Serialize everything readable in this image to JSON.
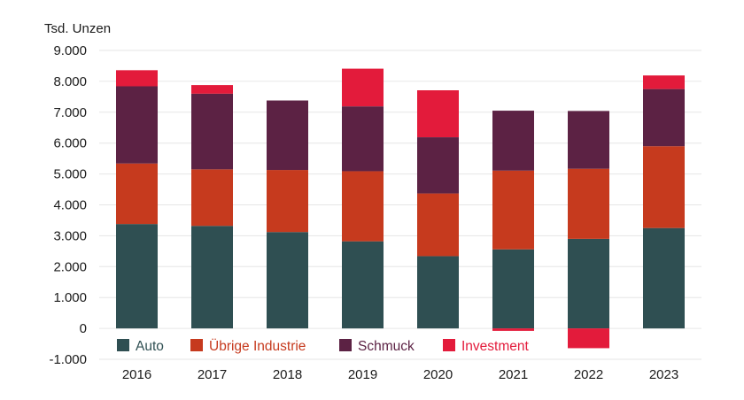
{
  "chart_data": {
    "type": "bar",
    "stacked": true,
    "y_unit_label": "Tsd. Unzen",
    "categories": [
      "2016",
      "2017",
      "2018",
      "2019",
      "2020",
      "2021",
      "2022",
      "2023"
    ],
    "ylim": [
      -1000,
      9000
    ],
    "y_ticks": [
      {
        "value": 9000,
        "label": "9.000"
      },
      {
        "value": 8000,
        "label": "8.000"
      },
      {
        "value": 7000,
        "label": "7.000"
      },
      {
        "value": 6000,
        "label": "6.000"
      },
      {
        "value": 5000,
        "label": "5.000"
      },
      {
        "value": 4000,
        "label": "4.000"
      },
      {
        "value": 3000,
        "label": "3.000"
      },
      {
        "value": 2000,
        "label": "2.000"
      },
      {
        "value": 1000,
        "label": "1.000"
      },
      {
        "value": 0,
        "label": "0"
      },
      {
        "value": -1000,
        "label": "-1.000"
      }
    ],
    "grid": true,
    "legend_position": "bottom-left",
    "series": [
      {
        "name": "Auto",
        "color": "#2f4f52",
        "values": [
          3380,
          3320,
          3120,
          2820,
          2340,
          2560,
          2900,
          3250
        ]
      },
      {
        "name": "Übrige Industrie",
        "color": "#c63a1e",
        "values": [
          1960,
          1830,
          2010,
          2270,
          2030,
          2550,
          2270,
          2650
        ]
      },
      {
        "name": "Schmuck",
        "color": "#5c2244",
        "values": [
          2500,
          2450,
          2250,
          2100,
          1820,
          1940,
          1870,
          1850
        ]
      },
      {
        "name": "Investment",
        "color": "#e31b3b",
        "values": [
          520,
          280,
          0,
          1220,
          1520,
          -80,
          -640,
          440
        ]
      }
    ]
  }
}
